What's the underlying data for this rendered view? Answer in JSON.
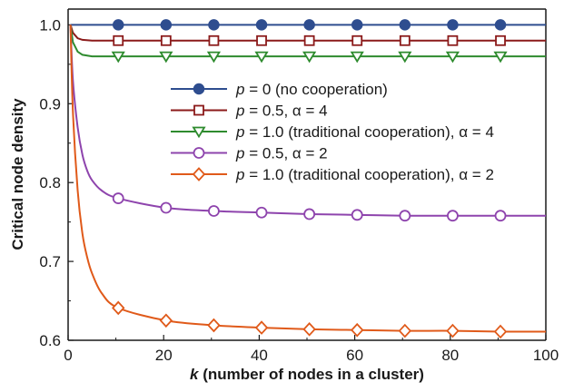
{
  "chart_data": {
    "type": "line",
    "xlabel_var": "k",
    "xlabel_rest": " (number of nodes in a cluster)",
    "ylabel": "Critical node density",
    "xlim": [
      0,
      100
    ],
    "ylim": [
      0.6,
      1.02
    ],
    "x_ticks": [
      0,
      20,
      40,
      60,
      80,
      100
    ],
    "y_ticks": [
      0.6,
      0.7,
      0.8,
      0.9,
      1.0
    ],
    "y_tick_labels": [
      "0.6",
      "0.7",
      "0.8",
      "0.9",
      "1.0"
    ],
    "grid": false,
    "legend_position": "right",
    "marker_x": [
      10.5,
      20.5,
      30.5,
      40.5,
      50.5,
      60.5,
      70.5,
      80.5,
      90.5
    ],
    "series": [
      {
        "name_var": "p",
        "name_rest": " = 0 (no cooperation)",
        "color": "#2e4d8f",
        "marker": "filled-circle",
        "x": [
          0.5,
          10.5,
          20.5,
          30.5,
          40.5,
          50.5,
          60.5,
          70.5,
          80.5,
          90.5,
          100
        ],
        "y": [
          1.0,
          1.0,
          1.0,
          1.0,
          1.0,
          1.0,
          1.0,
          1.0,
          1.0,
          1.0,
          1.0
        ]
      },
      {
        "name_var": "p",
        "name_rest": " = 0.5, α = 4",
        "color": "#8b1a1a",
        "marker": "square",
        "x": [
          0.5,
          1,
          2,
          3,
          5,
          10.5,
          20.5,
          30.5,
          40.5,
          50.5,
          60.5,
          70.5,
          80.5,
          90.5,
          100
        ],
        "y": [
          1.0,
          0.99,
          0.983,
          0.981,
          0.98,
          0.98,
          0.98,
          0.98,
          0.98,
          0.98,
          0.98,
          0.98,
          0.98,
          0.98,
          0.98
        ]
      },
      {
        "name_var": "p",
        "name_rest": " = 1.0 (traditional cooperation), α = 4",
        "color": "#2e8b2e",
        "marker": "triangle-down",
        "x": [
          0.5,
          1,
          2,
          3,
          5,
          10.5,
          20.5,
          30.5,
          40.5,
          50.5,
          60.5,
          70.5,
          80.5,
          90.5,
          100
        ],
        "y": [
          1.0,
          0.978,
          0.966,
          0.962,
          0.96,
          0.96,
          0.96,
          0.96,
          0.96,
          0.96,
          0.96,
          0.96,
          0.96,
          0.96,
          0.96
        ]
      },
      {
        "name_var": "p",
        "name_rest": " = 0.5, α = 2",
        "color": "#8e44ad",
        "marker": "circle",
        "x": [
          0.5,
          1,
          2,
          3,
          4,
          5,
          7,
          10.5,
          20.5,
          30.5,
          40.5,
          50.5,
          60.5,
          70.5,
          80.5,
          90.5,
          100
        ],
        "y": [
          1.0,
          0.93,
          0.87,
          0.835,
          0.815,
          0.803,
          0.79,
          0.78,
          0.768,
          0.764,
          0.762,
          0.76,
          0.759,
          0.758,
          0.758,
          0.758,
          0.758
        ],
        "smooth": true
      },
      {
        "name_var": "p",
        "name_rest": " = 1.0 (traditional cooperation), α = 2",
        "color": "#e05a1a",
        "marker": "diamond",
        "x": [
          0.5,
          1,
          2,
          3,
          4,
          5,
          7,
          10.5,
          20.5,
          30.5,
          40.5,
          50.5,
          60.5,
          70.5,
          80.5,
          90.5,
          100
        ],
        "y": [
          1.0,
          0.89,
          0.79,
          0.735,
          0.705,
          0.685,
          0.66,
          0.641,
          0.625,
          0.619,
          0.616,
          0.614,
          0.613,
          0.612,
          0.612,
          0.611,
          0.611
        ],
        "smooth": true
      }
    ]
  }
}
